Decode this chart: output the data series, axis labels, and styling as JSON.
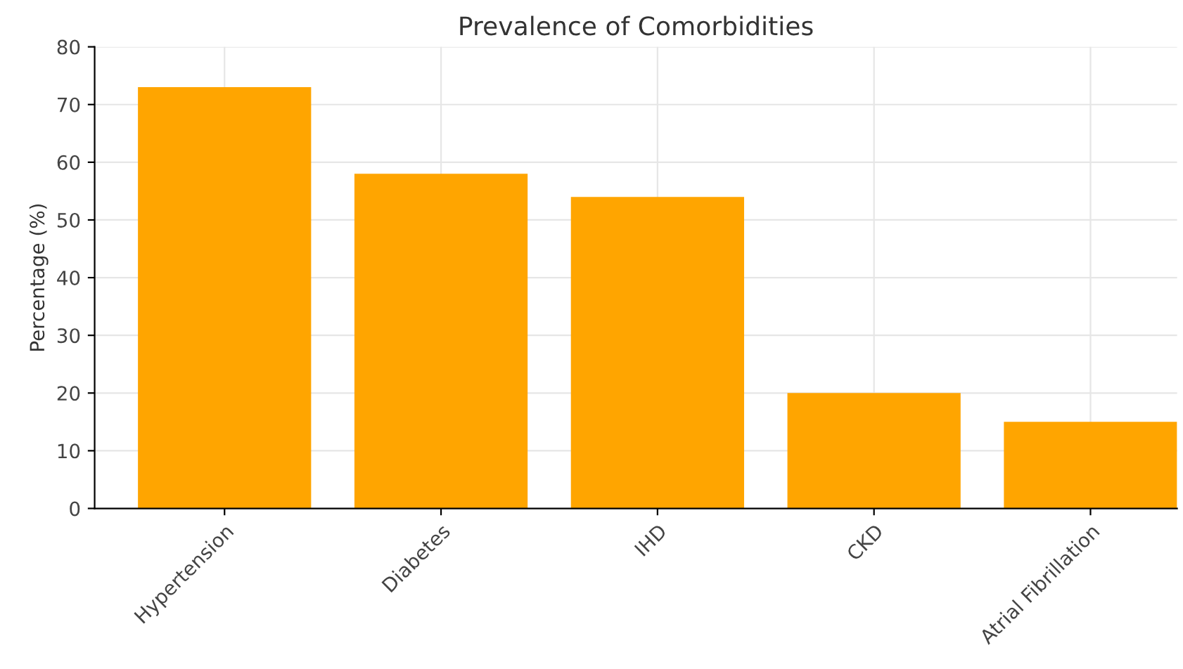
{
  "chart_data": {
    "type": "bar",
    "title": "Prevalence of Comorbidities",
    "ylabel": "Percentage (%)",
    "categories": [
      "Hypertension",
      "Diabetes",
      "IHD",
      "CKD",
      "Atrial Fibrillation"
    ],
    "values": [
      73,
      58,
      54,
      20,
      15
    ],
    "color": "#ffa500",
    "ylim": [
      0,
      80
    ],
    "yticks": [
      0,
      10,
      20,
      30,
      40,
      50,
      60,
      70,
      80
    ],
    "grid": true
  }
}
